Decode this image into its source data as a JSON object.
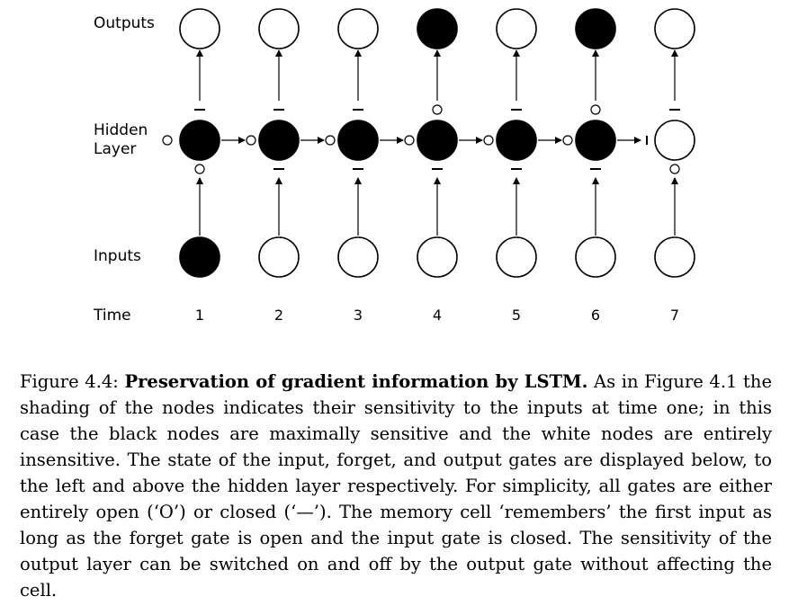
{
  "diagram": {
    "rows": {
      "outputs_label": "Outputs",
      "hidden_label_line1": "Hidden",
      "hidden_label_line2": "Layer",
      "inputs_label": "Inputs",
      "time_label": "Time"
    },
    "timesteps": [
      {
        "time": "1",
        "input": "black",
        "hidden": "black",
        "output": "white",
        "input_gate": "O",
        "forget_gate": "O",
        "output_gate": "—"
      },
      {
        "time": "2",
        "input": "white",
        "hidden": "black",
        "output": "white",
        "input_gate": "—",
        "forget_gate": "O",
        "output_gate": "—"
      },
      {
        "time": "3",
        "input": "white",
        "hidden": "black",
        "output": "white",
        "input_gate": "—",
        "forget_gate": "O",
        "output_gate": "—"
      },
      {
        "time": "4",
        "input": "white",
        "hidden": "black",
        "output": "black",
        "input_gate": "—",
        "forget_gate": "O",
        "output_gate": "O"
      },
      {
        "time": "5",
        "input": "white",
        "hidden": "black",
        "output": "white",
        "input_gate": "—",
        "forget_gate": "O",
        "output_gate": "—"
      },
      {
        "time": "6",
        "input": "white",
        "hidden": "black",
        "output": "black",
        "input_gate": "—",
        "forget_gate": "O",
        "output_gate": "O"
      },
      {
        "time": "7",
        "input": "white",
        "hidden": "white",
        "output": "white",
        "input_gate": "O",
        "forget_gate": "—",
        "output_gate": "—"
      }
    ],
    "colors": {
      "black": "#000000",
      "white": "#ffffff"
    }
  },
  "caption": {
    "label": "Figure 4.4: ",
    "title": "Preservation of gradient information by LSTM.",
    "body": " As in Figure 4.1 the shading of the nodes indicates their sensitivity to the inputs at time one; in this case the black nodes are maximally sensitive and the white nodes are entirely insensitive. The state of the input, forget, and output gates are displayed below, to the left and above the hidden layer respectively. For simplicity, all gates are either entirely open (‘O’) or closed (‘—’). The memory cell ‘remembers’ the first input as long as the forget gate is open and the input gate is closed. The sensitivity of the output layer can be switched on and off by the output gate without affecting the cell."
  }
}
